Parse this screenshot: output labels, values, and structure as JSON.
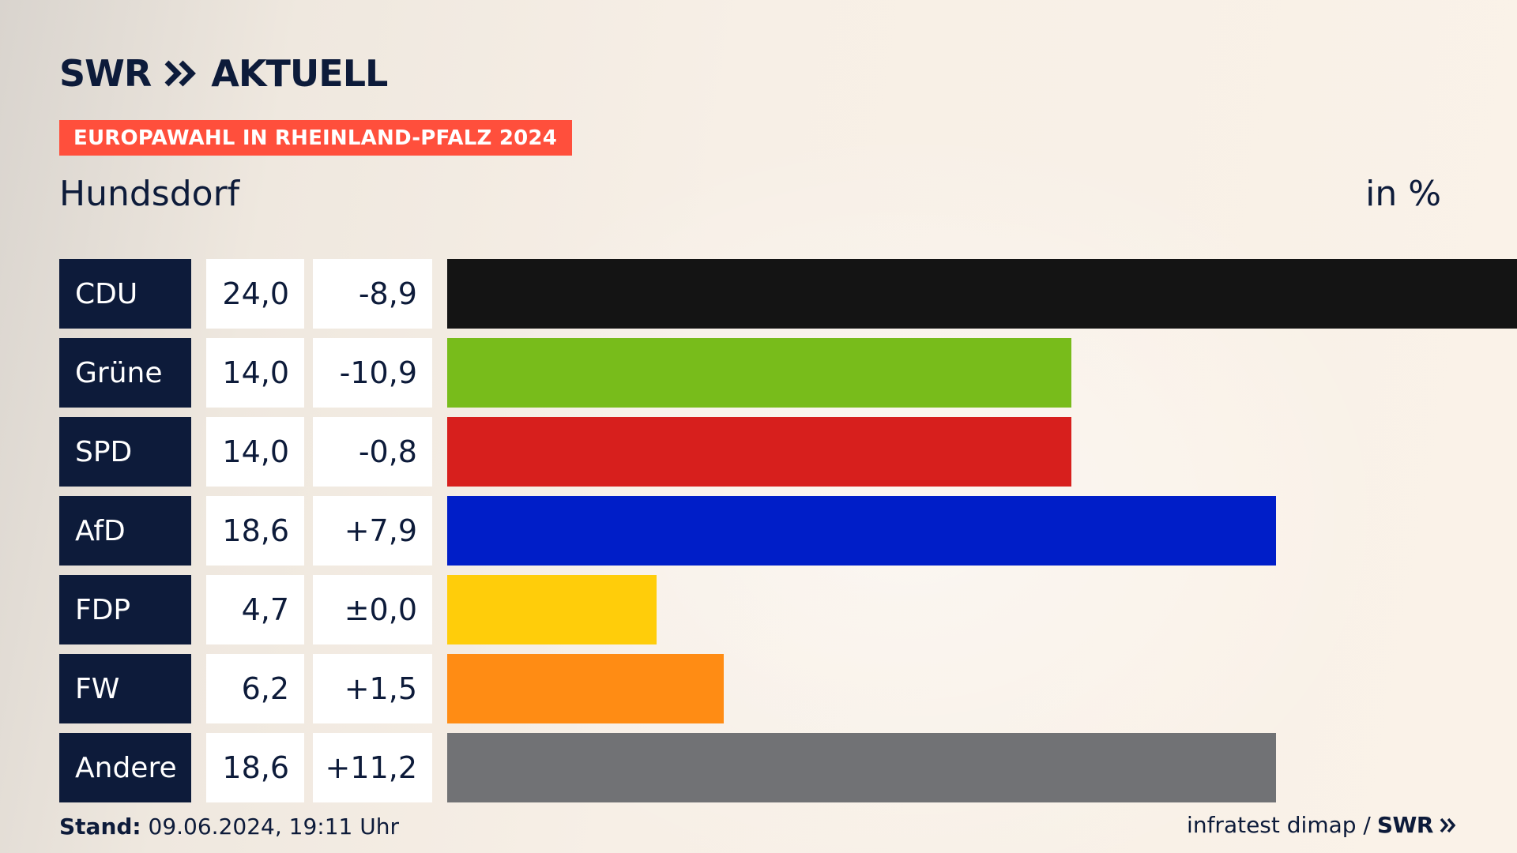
{
  "header": {
    "logo_left": "SWR",
    "logo_right": "AKTUELL",
    "banner": "EUROPAWAHL IN RHEINLAND-PFALZ 2024",
    "place": "Hundsdorf",
    "unit": "in %"
  },
  "footer": {
    "stand_label": "Stand:",
    "stand_value": " 09.06.2024, 19:11 Uhr",
    "source": "infratest dimap /",
    "source_logo": "SWR"
  },
  "colors": {
    "navy": "#0d1b3a",
    "banner": "#ff4f3c"
  },
  "chart_data": {
    "type": "bar",
    "orientation": "horizontal",
    "categories": [
      "CDU",
      "Grüne",
      "SPD",
      "AfD",
      "FDP",
      "FW",
      "Andere"
    ],
    "values": [
      24.0,
      14.0,
      14.0,
      18.6,
      4.7,
      6.2,
      18.6
    ],
    "value_labels": [
      "24,0",
      "14,0",
      "14,0",
      "18,6",
      "4,7",
      "6,2",
      "18,6"
    ],
    "diff_labels": [
      "-8,9",
      "-10,9",
      "-0,8",
      "+7,9",
      "±0,0",
      "+1,5",
      "+11,2"
    ],
    "bar_colors": [
      "#141414",
      "#78bc1b",
      "#d71f1d",
      "#001ec8",
      "#ffcd0a",
      "#ff8c14",
      "#717275"
    ],
    "xlim": [
      0,
      24
    ],
    "grid": false,
    "legend": "none"
  }
}
